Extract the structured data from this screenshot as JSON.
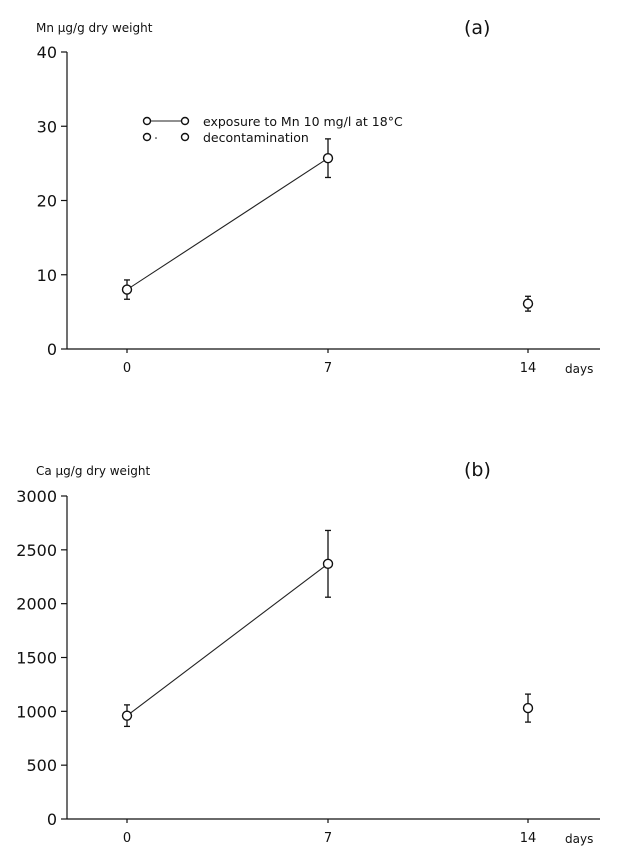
{
  "chart_data": [
    {
      "type": "line",
      "panel_label": "(a)",
      "ylabel": "Mn µg/g dry weight",
      "ylim": [
        0,
        40
      ],
      "yticks": [
        0,
        10,
        20,
        30,
        40
      ],
      "xticks": [
        0,
        7,
        14
      ],
      "x_unit_label": "days",
      "legend": [
        {
          "label": "exposure to Mn 10 mg/l at 18°C",
          "style": "line"
        },
        {
          "label": "decontamination",
          "style": "dotted"
        }
      ],
      "legend_position": "top-center",
      "series": [
        {
          "name": "exposure to Mn 10 mg/l at 18°C",
          "connected": true,
          "points": [
            {
              "x": 0,
              "y": 8.0,
              "err": 1.3
            },
            {
              "x": 7,
              "y": 25.7,
              "err": 2.6
            }
          ]
        },
        {
          "name": "decontamination",
          "connected": false,
          "points": [
            {
              "x": 14,
              "y": 6.1,
              "err": 1.0
            }
          ]
        }
      ],
      "grid": false
    },
    {
      "type": "line",
      "panel_label": "(b)",
      "ylabel": "Ca µg/g dry weight",
      "ylim": [
        0,
        3000
      ],
      "yticks": [
        0,
        500,
        1000,
        1500,
        2000,
        2500,
        3000
      ],
      "xticks": [
        0,
        7,
        14
      ],
      "x_unit_label": "days",
      "series": [
        {
          "name": "exposure",
          "connected": true,
          "points": [
            {
              "x": 0,
              "y": 960,
              "err": 100
            },
            {
              "x": 7,
              "y": 2370,
              "err": 310
            }
          ]
        },
        {
          "name": "decontamination",
          "connected": false,
          "points": [
            {
              "x": 14,
              "y": 1030,
              "err": 130
            }
          ]
        }
      ],
      "grid": false
    }
  ]
}
